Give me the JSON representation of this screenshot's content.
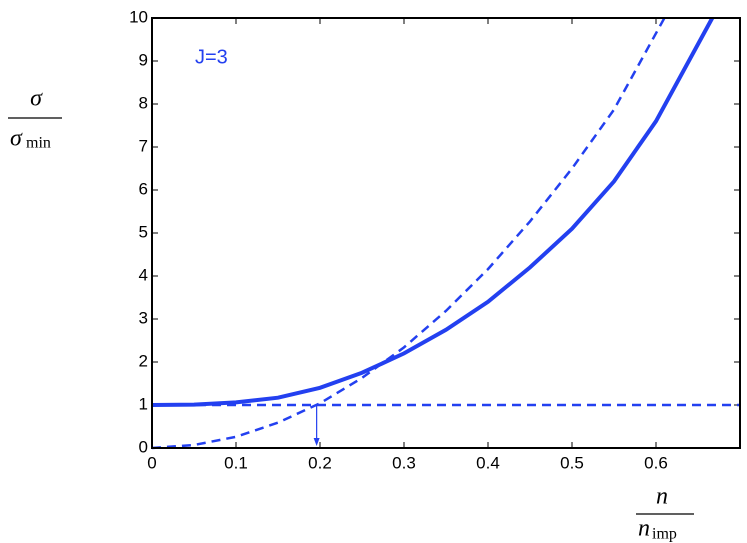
{
  "chart_data": {
    "type": "line",
    "annotation": "J=3",
    "ylabel_numerator": "σ",
    "ylabel_denominator": "σ",
    "ylabel_denominator_subscript": "min",
    "xlabel_numerator": "n",
    "xlabel_denominator": "n",
    "xlabel_denominator_subscript": "imp",
    "xlim": [
      0,
      0.7
    ],
    "xticks": [
      0,
      0.1,
      0.2,
      0.3,
      0.4,
      0.5,
      0.6
    ],
    "ylim": [
      0,
      10
    ],
    "yticks": [
      0,
      1,
      2,
      3,
      4,
      5,
      6,
      7,
      8,
      9,
      10
    ],
    "series": [
      {
        "color": "#2340f0",
        "style": "solid",
        "x": [
          0,
          0.05,
          0.1,
          0.15,
          0.2,
          0.25,
          0.3,
          0.35,
          0.4,
          0.45,
          0.5,
          0.55,
          0.6,
          0.667
        ],
        "values": [
          1,
          1.01,
          1.06,
          1.17,
          1.4,
          1.75,
          2.2,
          2.75,
          3.4,
          4.2,
          5.1,
          6.2,
          7.6,
          10
        ]
      },
      {
        "color": "#2340f0",
        "style": "dashed",
        "x": [
          0,
          0.05,
          0.1,
          0.15,
          0.2,
          0.25,
          0.3,
          0.35,
          0.4,
          0.45,
          0.5,
          0.55,
          0.61
        ],
        "values": [
          0,
          0.07,
          0.26,
          0.59,
          1.04,
          1.63,
          2.34,
          3.19,
          4.16,
          5.27,
          6.5,
          7.87,
          10
        ]
      },
      {
        "color": "#2340f0",
        "style": "dashed",
        "x": [
          0,
          0.7
        ],
        "values": [
          1,
          1
        ]
      }
    ],
    "arrow": {
      "x": 0.196,
      "y_from": 1,
      "y_to": 0,
      "color": "#2340f0"
    }
  }
}
